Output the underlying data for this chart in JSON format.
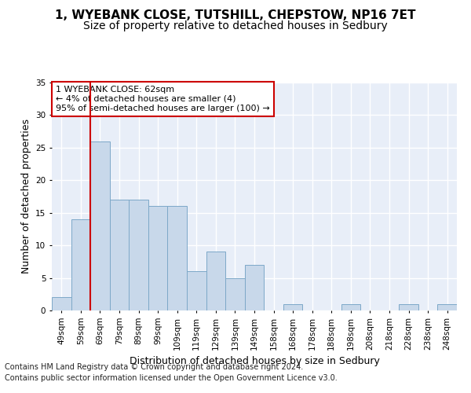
{
  "title_line1": "1, WYEBANK CLOSE, TUTSHILL, CHEPSTOW, NP16 7ET",
  "title_line2": "Size of property relative to detached houses in Sedbury",
  "xlabel": "Distribution of detached houses by size in Sedbury",
  "ylabel": "Number of detached properties",
  "footer_line1": "Contains HM Land Registry data © Crown copyright and database right 2024.",
  "footer_line2": "Contains public sector information licensed under the Open Government Licence v3.0.",
  "bins": [
    "49sqm",
    "59sqm",
    "69sqm",
    "79sqm",
    "89sqm",
    "99sqm",
    "109sqm",
    "119sqm",
    "129sqm",
    "139sqm",
    "149sqm",
    "158sqm",
    "168sqm",
    "178sqm",
    "188sqm",
    "198sqm",
    "208sqm",
    "218sqm",
    "228sqm",
    "238sqm",
    "248sqm"
  ],
  "values": [
    2,
    14,
    26,
    17,
    17,
    16,
    16,
    6,
    9,
    5,
    7,
    0,
    1,
    0,
    0,
    1,
    0,
    0,
    1,
    0,
    1
  ],
  "bar_color": "#c8d8ea",
  "bar_edge_color": "#7da8c8",
  "vline_x": 1.5,
  "vline_color": "#cc0000",
  "annotation_box_text": "1 WYEBANK CLOSE: 62sqm\n← 4% of detached houses are smaller (4)\n95% of semi-detached houses are larger (100) →",
  "ylim": [
    0,
    35
  ],
  "yticks": [
    0,
    5,
    10,
    15,
    20,
    25,
    30,
    35
  ],
  "background_color": "#e8eef8",
  "grid_color": "#ffffff",
  "fig_bg_color": "#ffffff",
  "title1_fontsize": 11,
  "title2_fontsize": 10,
  "xlabel_fontsize": 9,
  "ylabel_fontsize": 9,
  "tick_fontsize": 7.5,
  "footer_fontsize": 7,
  "annotation_fontsize": 8
}
